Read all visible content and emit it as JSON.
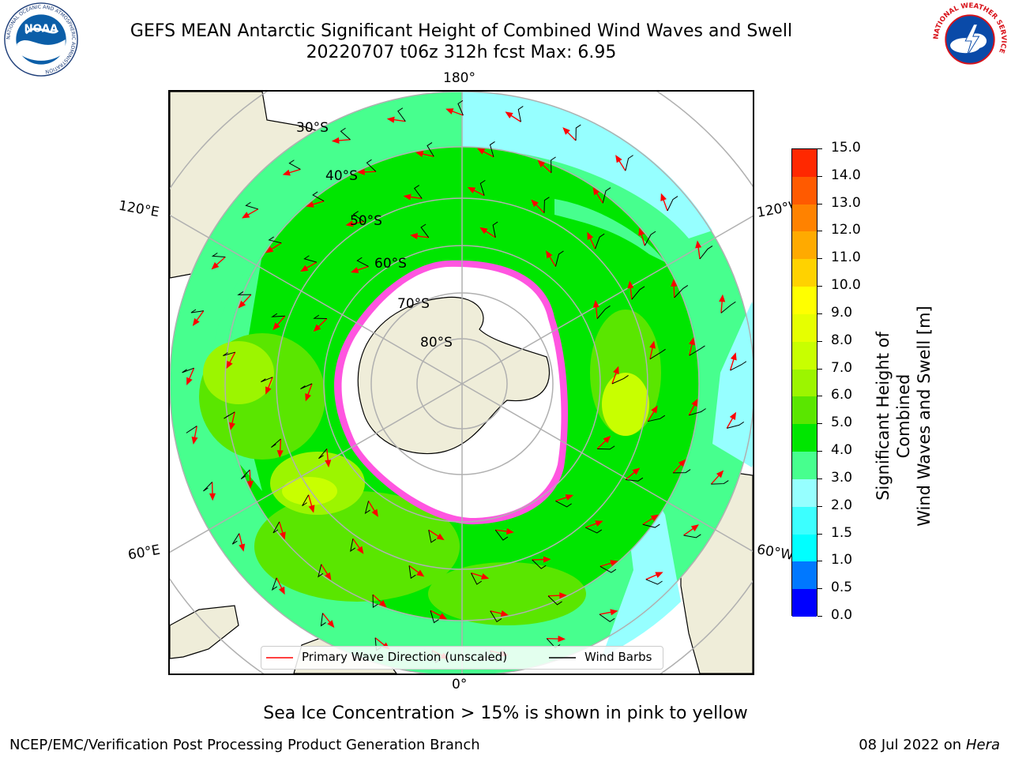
{
  "header": {
    "title_line1": "GEFS MEAN Antarctic Significant Height of Combined Wind Waves and Swell",
    "title_line2": "20220707 t06z 312h fcst   Max: 6.95"
  },
  "logos": {
    "left": "NOAA",
    "left_ring": "NATIONAL OCEANIC AND ATMOSPHERIC ADMINISTRATION",
    "right_ring": "NATIONAL WEATHER SERVICE"
  },
  "map": {
    "projection": "south-polar-stereographic",
    "longitude_labels": {
      "top": "180°",
      "bottom": "0°",
      "upper_left": "120°E",
      "upper_right": "120°W",
      "lower_left": "60°E",
      "lower_right": "60°W"
    },
    "latitude_labels": [
      "30°S",
      "40°S",
      "50°S",
      "60°S",
      "70°S",
      "80°S"
    ],
    "max_value": 6.95
  },
  "colorbar": {
    "title_line1": "Significant Height of Combined",
    "title_line2": "Wind Waves and Swell [m]",
    "ticks": [
      "0.0",
      "0.5",
      "1.0",
      "1.5",
      "2.0",
      "3.0",
      "4.0",
      "5.0",
      "6.0",
      "7.0",
      "8.0",
      "9.0",
      "10.0",
      "11.0",
      "12.0",
      "13.0",
      "14.0",
      "15.0"
    ],
    "colors": [
      "#0000ff",
      "#0078ff",
      "#00ffff",
      "#3cffff",
      "#96ffff",
      "#47ff8e",
      "#00e600",
      "#5ae600",
      "#9cf500",
      "#c8ff00",
      "#e6ff00",
      "#ffff00",
      "#ffd200",
      "#ffaa00",
      "#ff8200",
      "#ff5a00",
      "#ff2800"
    ]
  },
  "legend": {
    "wave_direction": "Primary Wave Direction (unscaled)",
    "wind_barbs": "Wind Barbs"
  },
  "footer": {
    "note": "Sea Ice Concentration > 15% is shown in pink to yellow",
    "left": "NCEP/EMC/Verification Post Processing Product Generation Branch",
    "right_date": "08 Jul 2022 on",
    "right_host": "Hera"
  }
}
